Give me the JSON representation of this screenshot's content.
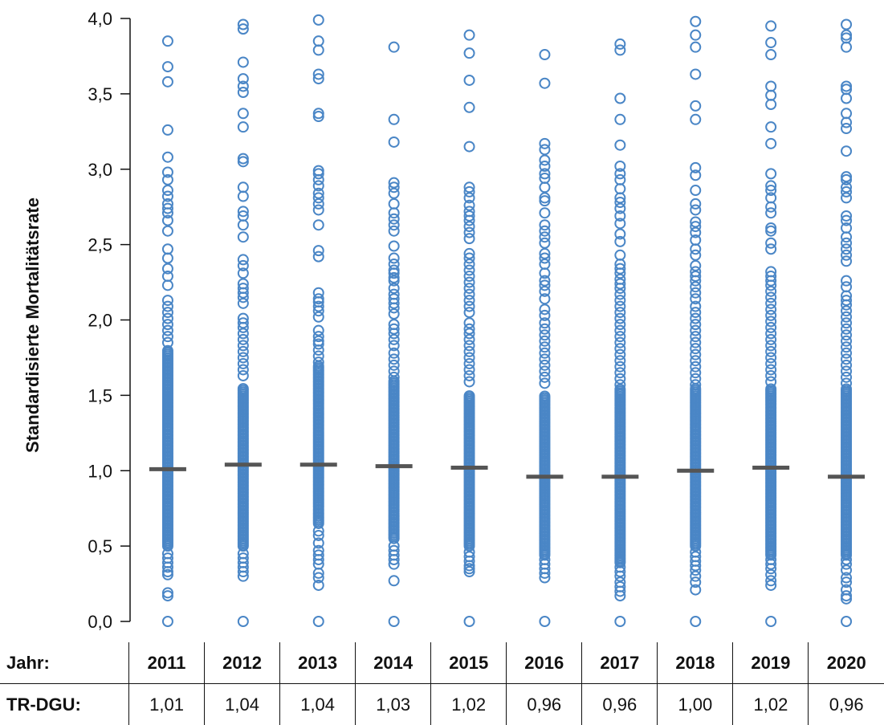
{
  "chart_data": {
    "type": "scatter",
    "title": "",
    "xlabel": "",
    "ylabel": "Standardisierte Mortalitätsrate",
    "ylim": [
      0.0,
      4.0
    ],
    "yticks": [
      "0,0",
      "0,5",
      "1,0",
      "1,5",
      "2,0",
      "2,5",
      "3,0",
      "3,5",
      "4,0"
    ],
    "ytick_values": [
      0,
      0.5,
      1.0,
      1.5,
      2.0,
      2.5,
      3.0,
      3.5,
      4.0
    ],
    "categories": [
      "2011",
      "2012",
      "2013",
      "2014",
      "2015",
      "2016",
      "2017",
      "2018",
      "2019",
      "2020"
    ],
    "marker_color": "#4a86c6",
    "median_color": "#555555",
    "dense_range": [
      [
        0.5,
        1.8
      ],
      [
        0.5,
        1.55
      ],
      [
        0.65,
        1.7
      ],
      [
        0.55,
        1.6
      ],
      [
        0.5,
        1.5
      ],
      [
        0.45,
        1.5
      ],
      [
        0.4,
        1.55
      ],
      [
        0.5,
        1.55
      ],
      [
        0.45,
        1.55
      ],
      [
        0.45,
        1.55
      ]
    ],
    "outliers": [
      [
        3.85,
        3.68,
        3.58,
        3.26,
        3.08,
        2.98,
        2.93,
        2.86,
        2.82,
        2.77,
        2.74,
        2.71,
        2.66,
        2.59,
        2.47,
        2.41,
        2.34,
        2.29,
        2.23,
        2.13,
        2.09,
        2.05,
        2.01,
        1.97,
        1.93,
        1.89,
        1.85,
        0.45,
        0.42,
        0.39,
        0.36,
        0.33,
        0.31,
        0.19,
        0.17,
        0.0
      ],
      [
        3.96,
        3.93,
        3.71,
        3.6,
        3.55,
        3.51,
        3.37,
        3.28,
        3.07,
        3.05,
        2.88,
        2.82,
        2.72,
        2.69,
        2.63,
        2.55,
        2.4,
        2.36,
        2.31,
        2.24,
        2.21,
        2.18,
        2.15,
        2.11,
        2.01,
        1.98,
        1.95,
        1.91,
        1.87,
        1.83,
        1.79,
        1.75,
        1.71,
        1.67,
        1.63,
        0.45,
        0.42,
        0.39,
        0.36,
        0.33,
        0.3,
        0.0
      ],
      [
        3.99,
        3.85,
        3.79,
        3.63,
        3.6,
        3.37,
        3.35,
        2.99,
        2.97,
        2.93,
        2.89,
        2.84,
        2.81,
        2.77,
        2.73,
        2.63,
        2.46,
        2.42,
        2.18,
        2.14,
        2.12,
        2.09,
        2.06,
        2.02,
        1.93,
        1.89,
        1.86,
        1.84,
        1.8,
        1.76,
        1.72,
        0.6,
        0.57,
        0.52,
        0.47,
        0.44,
        0.41,
        0.38,
        0.32,
        0.29,
        0.24,
        0.0
      ],
      [
        3.81,
        3.33,
        3.18,
        2.91,
        2.88,
        2.84,
        2.77,
        2.71,
        2.67,
        2.63,
        2.59,
        2.49,
        2.41,
        2.37,
        2.33,
        2.31,
        2.28,
        2.26,
        2.21,
        2.17,
        2.14,
        2.11,
        2.08,
        2.04,
        1.97,
        1.94,
        1.91,
        1.87,
        1.83,
        1.78,
        1.74,
        1.7,
        1.66,
        1.62,
        0.5,
        0.47,
        0.44,
        0.41,
        0.38,
        0.27,
        0.0
      ],
      [
        3.89,
        3.77,
        3.59,
        3.41,
        3.15,
        2.88,
        2.85,
        2.81,
        2.76,
        2.72,
        2.69,
        2.66,
        2.62,
        2.58,
        2.54,
        2.44,
        2.41,
        2.37,
        2.33,
        2.29,
        2.25,
        2.21,
        2.17,
        2.13,
        2.09,
        2.05,
        1.98,
        1.94,
        1.91,
        1.87,
        1.83,
        1.79,
        1.75,
        1.71,
        1.67,
        1.63,
        1.59,
        0.46,
        0.43,
        0.4,
        0.37,
        0.35,
        0.33,
        0.0
      ],
      [
        3.76,
        3.57,
        3.17,
        3.13,
        3.06,
        3.02,
        2.97,
        2.94,
        2.88,
        2.81,
        2.79,
        2.71,
        2.63,
        2.59,
        2.55,
        2.51,
        2.44,
        2.41,
        2.37,
        2.31,
        2.26,
        2.23,
        2.19,
        2.14,
        2.07,
        2.03,
        1.98,
        1.94,
        1.9,
        1.86,
        1.82,
        1.78,
        1.74,
        1.7,
        1.66,
        1.62,
        1.58,
        0.44,
        0.41,
        0.38,
        0.35,
        0.32,
        0.29,
        0.0
      ],
      [
        3.83,
        3.79,
        3.47,
        3.33,
        3.16,
        3.02,
        2.97,
        2.93,
        2.87,
        2.81,
        2.78,
        2.74,
        2.69,
        2.64,
        2.57,
        2.52,
        2.43,
        2.37,
        2.34,
        2.31,
        2.27,
        2.24,
        2.21,
        2.17,
        2.13,
        2.09,
        2.05,
        2.01,
        1.97,
        1.93,
        1.89,
        1.85,
        1.81,
        1.77,
        1.73,
        1.69,
        1.65,
        1.61,
        1.57,
        0.39,
        0.36,
        0.33,
        0.3,
        0.26,
        0.23,
        0.2,
        0.17,
        0.0
      ],
      [
        3.98,
        3.89,
        3.81,
        3.63,
        3.42,
        3.33,
        3.01,
        2.96,
        2.86,
        2.77,
        2.73,
        2.65,
        2.62,
        2.58,
        2.53,
        2.47,
        2.43,
        2.36,
        2.32,
        2.29,
        2.26,
        2.22,
        2.18,
        2.14,
        2.09,
        2.05,
        2.01,
        1.97,
        1.93,
        1.89,
        1.85,
        1.81,
        1.77,
        1.73,
        1.69,
        1.65,
        1.61,
        1.57,
        0.46,
        0.43,
        0.4,
        0.37,
        0.34,
        0.3,
        0.26,
        0.21,
        0.0
      ],
      [
        3.95,
        3.84,
        3.76,
        3.55,
        3.49,
        3.43,
        3.28,
        3.17,
        2.97,
        2.89,
        2.86,
        2.81,
        2.75,
        2.71,
        2.61,
        2.59,
        2.51,
        2.47,
        2.32,
        2.29,
        2.26,
        2.23,
        2.19,
        2.15,
        2.11,
        2.07,
        2.03,
        1.99,
        1.95,
        1.91,
        1.87,
        1.83,
        1.79,
        1.75,
        1.71,
        1.67,
        1.63,
        1.59,
        0.44,
        0.41,
        0.38,
        0.35,
        0.31,
        0.27,
        0.24,
        0.0
      ],
      [
        3.96,
        3.89,
        3.87,
        3.81,
        3.55,
        3.53,
        3.47,
        3.37,
        3.31,
        3.27,
        3.12,
        2.95,
        2.93,
        2.88,
        2.85,
        2.81,
        2.69,
        2.66,
        2.61,
        2.55,
        2.51,
        2.47,
        2.43,
        2.39,
        2.26,
        2.22,
        2.16,
        2.13,
        2.1,
        2.06,
        2.02,
        1.98,
        1.94,
        1.9,
        1.86,
        1.82,
        1.78,
        1.74,
        1.7,
        1.66,
        1.62,
        1.58,
        0.44,
        0.41,
        0.38,
        0.34,
        0.29,
        0.26,
        0.21,
        0.17,
        0.15,
        0.0
      ]
    ],
    "medians": [
      1.01,
      1.04,
      1.04,
      1.03,
      1.02,
      0.96,
      0.96,
      1.0,
      1.02,
      0.96
    ]
  },
  "table": {
    "year_row_label": "Jahr:",
    "years": [
      "2011",
      "2012",
      "2013",
      "2014",
      "2015",
      "2016",
      "2017",
      "2018",
      "2019",
      "2020"
    ],
    "value_row_label": "TR-DGU:",
    "values": [
      "1,01",
      "1,04",
      "1,04",
      "1,03",
      "1,02",
      "0,96",
      "0,96",
      "1,00",
      "1,02",
      "0,96"
    ]
  }
}
